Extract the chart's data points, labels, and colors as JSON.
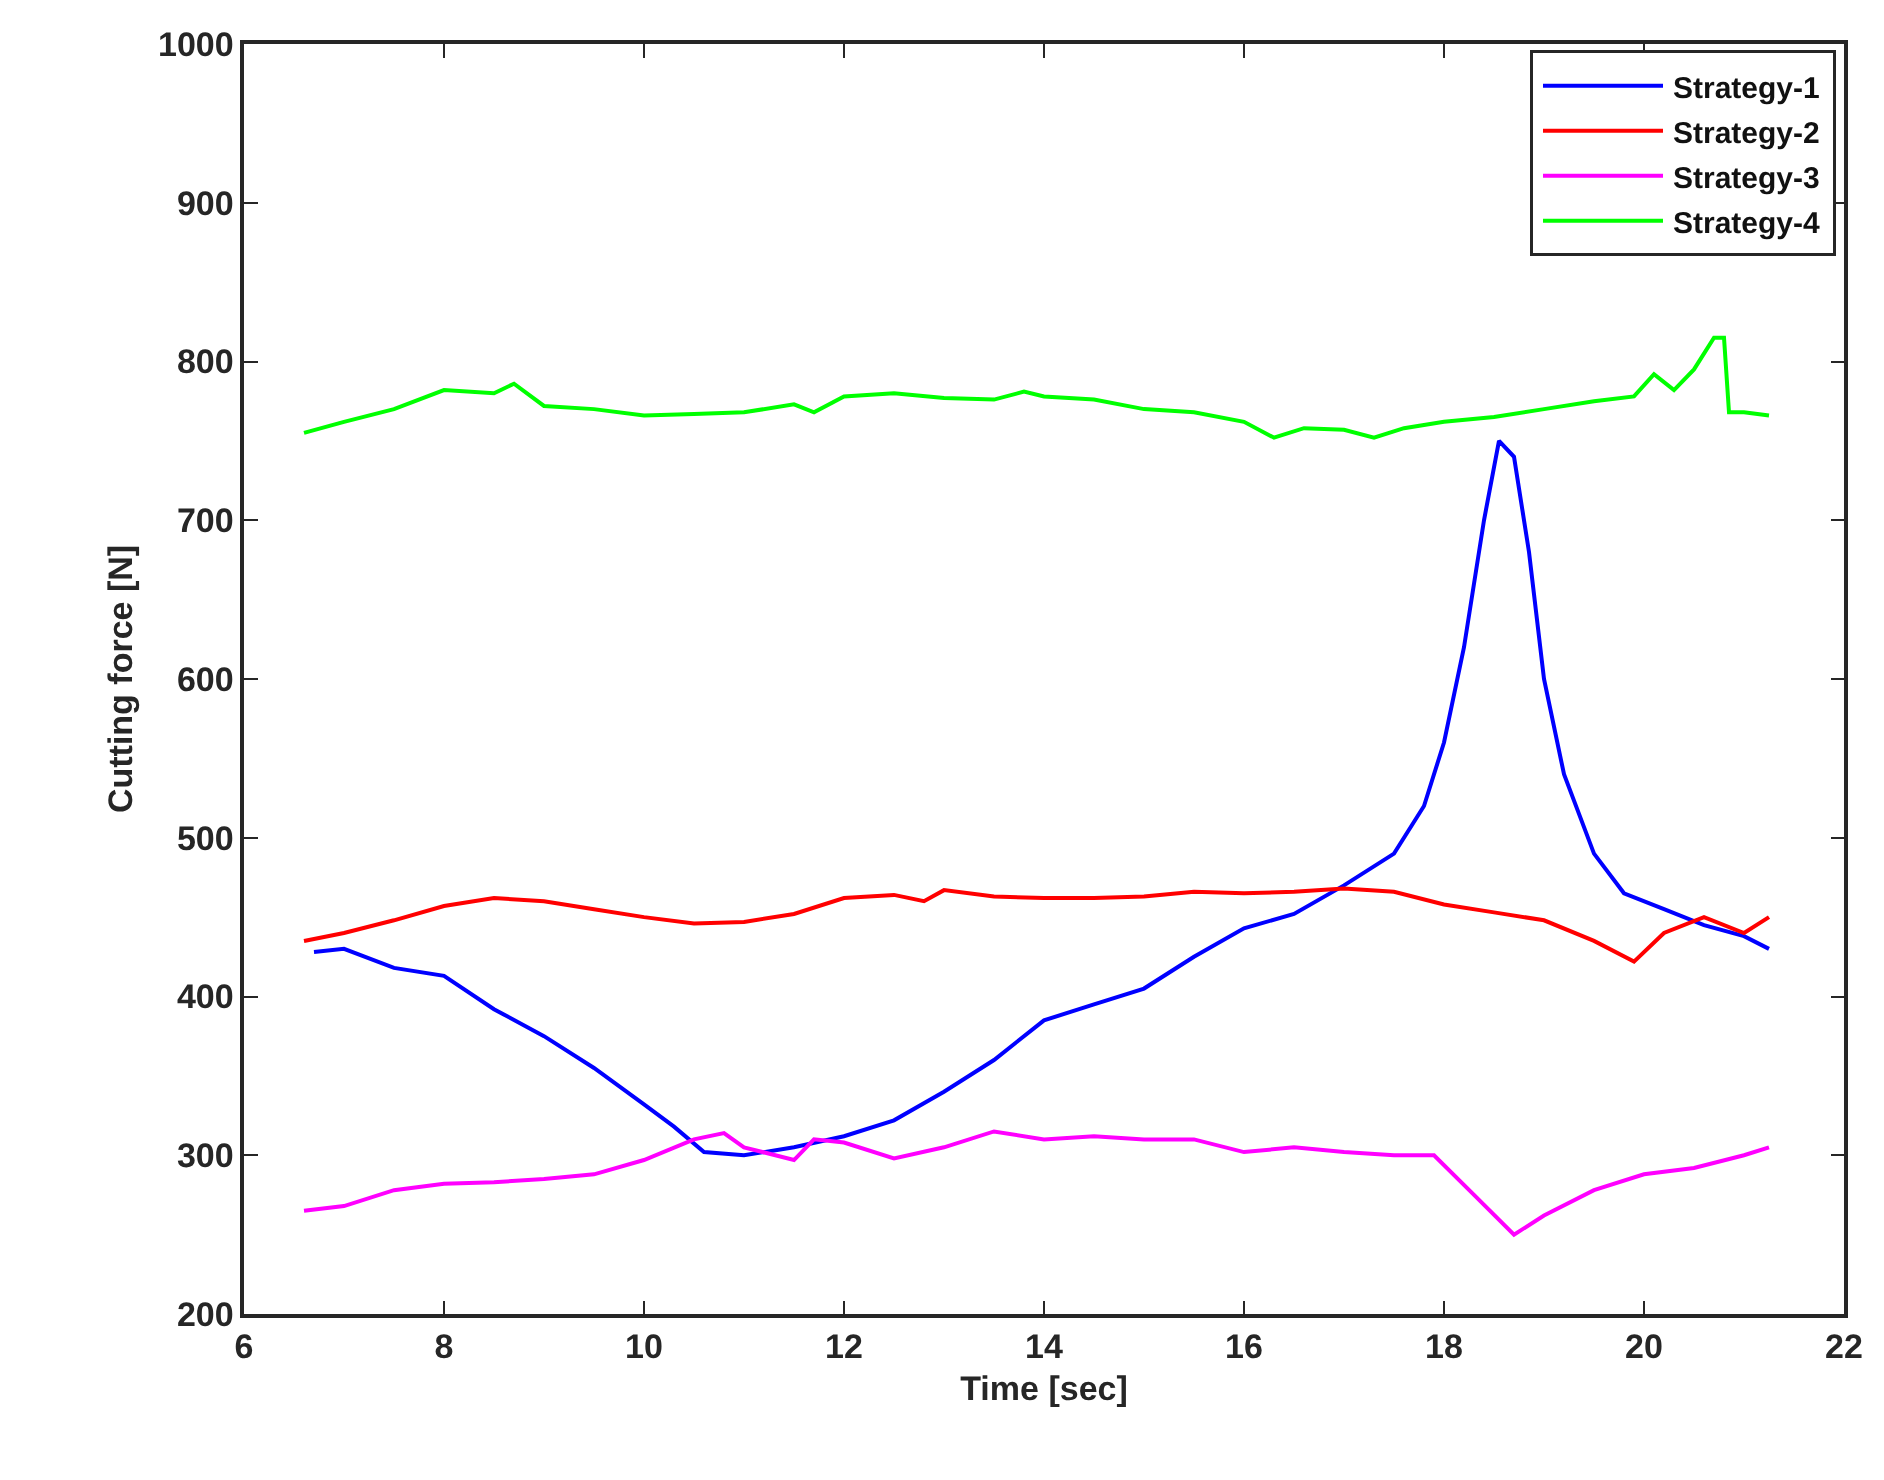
{
  "chart_data": {
    "type": "line",
    "xlabel": "Time [sec]",
    "ylabel": "Cutting force [N]",
    "xlim": [
      6,
      22
    ],
    "xticks": [
      6,
      8,
      10,
      12,
      14,
      16,
      18,
      20,
      22
    ],
    "ylim": [
      200,
      1000
    ],
    "yticks": [
      200,
      300,
      400,
      500,
      600,
      700,
      800,
      900,
      1000
    ],
    "grid": false,
    "legend": "top right",
    "marker": "none",
    "line_style": "solid",
    "series": [
      {
        "name": "Strategy-1",
        "color": "#0000ff",
        "x": [
          6.7,
          7.0,
          7.5,
          8.0,
          8.5,
          9.0,
          9.5,
          10.0,
          10.3,
          10.6,
          11.0,
          11.5,
          12.0,
          12.5,
          13.0,
          13.5,
          14.0,
          14.5,
          15.0,
          15.5,
          16.0,
          16.5,
          17.0,
          17.5,
          17.8,
          18.0,
          18.2,
          18.4,
          18.55,
          18.7,
          18.85,
          19.0,
          19.2,
          19.5,
          19.8,
          20.2,
          20.6,
          21.0,
          21.25
        ],
        "values": [
          428,
          430,
          418,
          413,
          392,
          375,
          355,
          332,
          318,
          302,
          300,
          305,
          312,
          322,
          340,
          360,
          385,
          395,
          405,
          425,
          443,
          452,
          470,
          490,
          520,
          560,
          620,
          700,
          750,
          740,
          680,
          600,
          540,
          490,
          465,
          455,
          445,
          438,
          430
        ]
      },
      {
        "name": "Strategy-2",
        "color": "#ff0000",
        "x": [
          6.6,
          7.0,
          7.5,
          8.0,
          8.5,
          9.0,
          9.5,
          10.0,
          10.5,
          11.0,
          11.5,
          12.0,
          12.5,
          12.8,
          13.0,
          13.5,
          14.0,
          14.5,
          15.0,
          15.5,
          16.0,
          16.5,
          17.0,
          17.5,
          18.0,
          18.5,
          19.0,
          19.5,
          19.9,
          20.2,
          20.6,
          21.0,
          21.25
        ],
        "values": [
          435,
          440,
          448,
          457,
          462,
          460,
          455,
          450,
          446,
          447,
          452,
          462,
          464,
          460,
          467,
          463,
          462,
          462,
          463,
          466,
          465,
          466,
          468,
          466,
          458,
          453,
          448,
          435,
          422,
          440,
          450,
          440,
          450
        ]
      },
      {
        "name": "Strategy-3",
        "color": "#ff00ff",
        "x": [
          6.6,
          7.0,
          7.5,
          8.0,
          8.5,
          9.0,
          9.5,
          10.0,
          10.5,
          10.8,
          11.0,
          11.5,
          11.7,
          12.0,
          12.5,
          13.0,
          13.5,
          14.0,
          14.5,
          15.0,
          15.5,
          16.0,
          16.5,
          17.0,
          17.5,
          17.9,
          18.3,
          18.7,
          19.0,
          19.5,
          20.0,
          20.5,
          21.0,
          21.25
        ],
        "values": [
          265,
          268,
          278,
          282,
          283,
          285,
          288,
          297,
          310,
          314,
          305,
          297,
          310,
          308,
          298,
          305,
          315,
          310,
          312,
          310,
          310,
          302,
          305,
          302,
          300,
          300,
          275,
          250,
          262,
          278,
          288,
          292,
          300,
          305
        ]
      },
      {
        "name": "Strategy-4",
        "color": "#00ff00",
        "x": [
          6.6,
          7.0,
          7.5,
          8.0,
          8.5,
          8.7,
          9.0,
          9.5,
          10.0,
          10.5,
          11.0,
          11.5,
          11.7,
          12.0,
          12.5,
          13.0,
          13.5,
          13.8,
          14.0,
          14.5,
          15.0,
          15.5,
          16.0,
          16.3,
          16.6,
          17.0,
          17.3,
          17.6,
          18.0,
          18.5,
          19.0,
          19.5,
          19.9,
          20.1,
          20.3,
          20.5,
          20.7,
          20.8,
          20.85,
          21.0,
          21.25
        ],
        "values": [
          755,
          762,
          770,
          782,
          780,
          786,
          772,
          770,
          766,
          767,
          768,
          773,
          768,
          778,
          780,
          777,
          776,
          781,
          778,
          776,
          770,
          768,
          762,
          752,
          758,
          757,
          752,
          758,
          762,
          765,
          770,
          775,
          778,
          792,
          782,
          795,
          815,
          815,
          768,
          768,
          766
        ]
      }
    ]
  }
}
